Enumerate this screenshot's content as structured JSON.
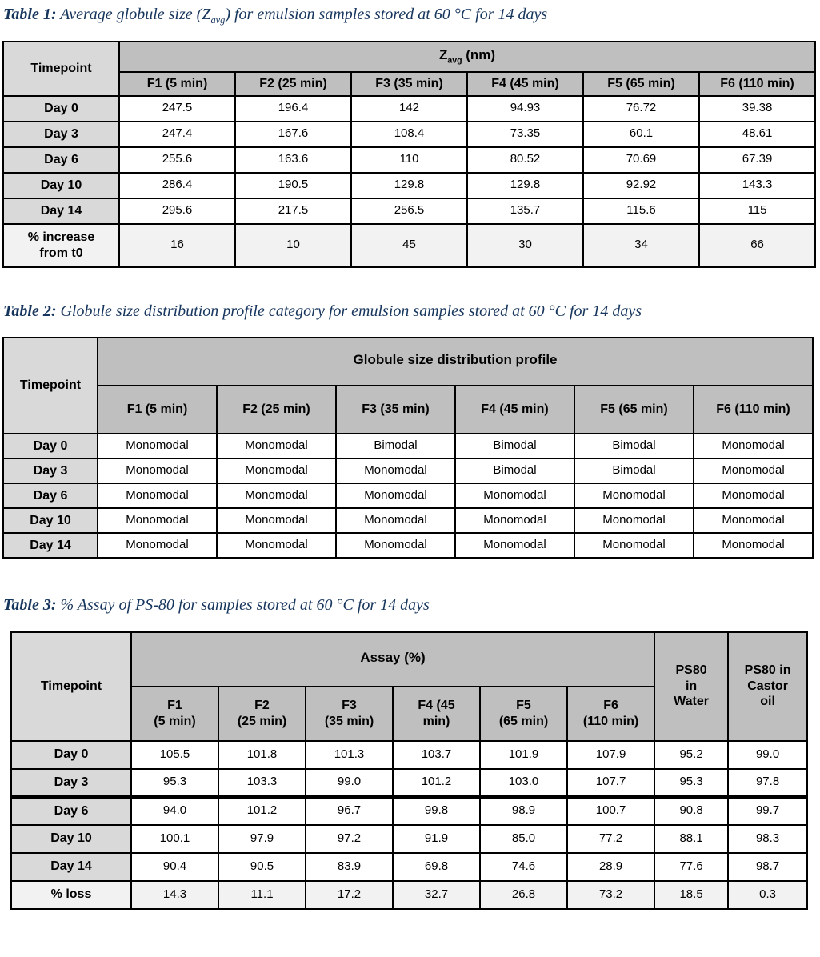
{
  "colors": {
    "caption_text": "#17365D",
    "header_fill": "#BFBFBF",
    "row_label_fill": "#D9D9D9",
    "summary_row_fill": "#F2F2F2",
    "cell_fill": "#FFFFFF",
    "border": "#000000"
  },
  "tables": [
    {
      "name": "table-1",
      "caption": {
        "label": "Table 1:",
        "pre": " Average globule size (Z",
        "sub": "avg",
        "post": ") for emulsion samples stored at 60 °C for 14 days"
      },
      "corner_label": "Timepoint",
      "group_pre": "Z",
      "group_sub": "avg",
      "group_post": " (nm)",
      "columns": [
        "F1 (5 min)",
        "F2 (25 min)",
        "F3 (35 min)",
        "F4 (45 min)",
        "F5 (65 min)",
        "F6 (110 min)"
      ],
      "rows": [
        {
          "label": "Day 0",
          "values": [
            "247.5",
            "196.4",
            "142",
            "94.93",
            "76.72",
            "39.38"
          ]
        },
        {
          "label": "Day 3",
          "values": [
            "247.4",
            "167.6",
            "108.4",
            "73.35",
            "60.1",
            "48.61"
          ]
        },
        {
          "label": "Day 6",
          "values": [
            "255.6",
            "163.6",
            "110",
            "80.52",
            "70.69",
            "67.39"
          ]
        },
        {
          "label": "Day 10",
          "values": [
            "286.4",
            "190.5",
            "129.8",
            "129.8",
            "92.92",
            "143.3"
          ]
        },
        {
          "label": "Day 14",
          "values": [
            "295.6",
            "217.5",
            "256.5",
            "135.7",
            "115.6",
            "115"
          ]
        }
      ],
      "summary_row": {
        "label": "% increase\nfrom t0",
        "values": [
          "16",
          "10",
          "45",
          "30",
          "34",
          "66"
        ]
      }
    },
    {
      "name": "table-2",
      "caption": {
        "label": "Table 2:",
        "pre": " Globule size distribution profile category for emulsion samples stored at 60 °C for 14 days",
        "sub": "",
        "post": ""
      },
      "corner_label": "Timepoint",
      "group_pre": "Globule size distribution profile",
      "group_sub": "",
      "group_post": "",
      "columns": [
        "F1 (5 min)",
        "F2 (25 min)",
        "F3 (35 min)",
        "F4 (45 min)",
        "F5 (65 min)",
        "F6 (110 min)"
      ],
      "rows": [
        {
          "label": "Day 0",
          "values": [
            "Monomodal",
            "Monomodal",
            "Bimodal",
            "Bimodal",
            "Bimodal",
            "Monomodal"
          ]
        },
        {
          "label": "Day 3",
          "values": [
            "Monomodal",
            "Monomodal",
            "Monomodal",
            "Bimodal",
            "Bimodal",
            "Monomodal"
          ]
        },
        {
          "label": "Day 6",
          "values": [
            "Monomodal",
            "Monomodal",
            "Monomodal",
            "Monomodal",
            "Monomodal",
            "Monomodal"
          ]
        },
        {
          "label": "Day 10",
          "values": [
            "Monomodal",
            "Monomodal",
            "Monomodal",
            "Monomodal",
            "Monomodal",
            "Monomodal"
          ]
        },
        {
          "label": "Day 14",
          "values": [
            "Monomodal",
            "Monomodal",
            "Monomodal",
            "Monomodal",
            "Monomodal",
            "Monomodal"
          ]
        }
      ]
    },
    {
      "name": "table-3",
      "caption": {
        "label": "Table 3:",
        "pre": " % Assay of PS-80 for samples stored at 60 °C for 14 days",
        "sub": "",
        "post": ""
      },
      "corner_label": "Timepoint",
      "group_pre": "Assay (%)",
      "group_sub": "",
      "group_post": "",
      "columns": [
        "F1\n(5 min)",
        "F2\n(25 min)",
        "F3\n(35 min)",
        "F4 (45\nmin)",
        "F5\n(65 min)",
        "F6\n(110 min)"
      ],
      "extra_columns": [
        "PS80\nin\nWater",
        "PS80 in\nCastor\noil"
      ],
      "rows": [
        {
          "label": "Day 0",
          "values": [
            "105.5",
            "101.8",
            "101.3",
            "103.7",
            "101.9",
            "107.9",
            "95.2",
            "99.0"
          ]
        },
        {
          "label": "Day 3",
          "values": [
            "95.3",
            "103.3",
            "99.0",
            "101.2",
            "103.0",
            "107.7",
            "95.3",
            "97.8"
          ]
        },
        {
          "label": "Day 6",
          "values": [
            "94.0",
            "101.2",
            "96.7",
            "99.8",
            "98.9",
            "100.7",
            "90.8",
            "99.7"
          ],
          "thick_top": true
        },
        {
          "label": "Day 10",
          "values": [
            "100.1",
            "97.9",
            "97.2",
            "91.9",
            "85.0",
            "77.2",
            "88.1",
            "98.3"
          ]
        },
        {
          "label": "Day 14",
          "values": [
            "90.4",
            "90.5",
            "83.9",
            "69.8",
            "74.6",
            "28.9",
            "77.6",
            "98.7"
          ]
        }
      ],
      "summary_row": {
        "label": "% loss",
        "values": [
          "14.3",
          "11.1",
          "17.2",
          "32.7",
          "26.8",
          "73.2",
          "18.5",
          "0.3"
        ]
      }
    }
  ]
}
